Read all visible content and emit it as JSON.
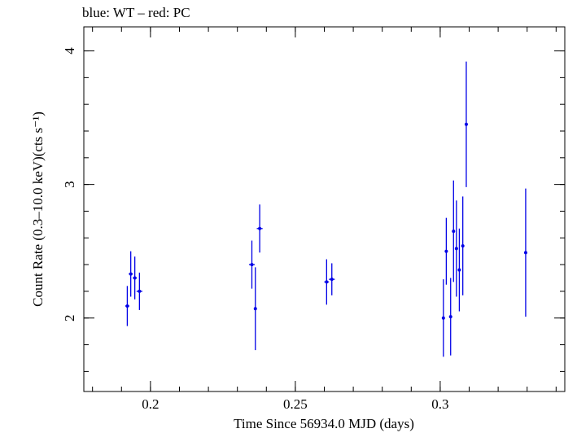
{
  "chart_data": {
    "type": "scatter",
    "title": "blue: WT – red: PC",
    "xlabel": "Time Since 56934.0 MJD (days)",
    "ylabel": "Count Rate (0.3–10.0 keV)(cts s⁻¹)",
    "xlim": [
      0.177,
      0.343
    ],
    "ylim": [
      1.45,
      4.18
    ],
    "x_ticks": [
      {
        "value": 0.2,
        "label": "0.2"
      },
      {
        "value": 0.25,
        "label": "0.25"
      },
      {
        "value": 0.3,
        "label": "0.3"
      }
    ],
    "y_ticks": [
      {
        "value": 2,
        "label": "2"
      },
      {
        "value": 3,
        "label": "3"
      },
      {
        "value": 4,
        "label": "4"
      }
    ],
    "x_minor_step": 0.01,
    "y_minor_step": 0.2,
    "grid": false,
    "series": [
      {
        "name": "WT",
        "color": "#0000e6",
        "points": [
          {
            "x": 0.192,
            "y": 2.09,
            "err": 0.15,
            "xerr": 0.0007
          },
          {
            "x": 0.1932,
            "y": 2.33,
            "err": 0.17,
            "xerr": 0.0007
          },
          {
            "x": 0.1946,
            "y": 2.3,
            "err": 0.16,
            "xerr": 0.0007
          },
          {
            "x": 0.1962,
            "y": 2.2,
            "err": 0.14,
            "xerr": 0.001
          },
          {
            "x": 0.235,
            "y": 2.4,
            "err": 0.18,
            "xerr": 0.001
          },
          {
            "x": 0.2362,
            "y": 2.07,
            "err": 0.31,
            "xerr": 0.0003
          },
          {
            "x": 0.2377,
            "y": 2.67,
            "err": 0.18,
            "xerr": 0.001
          },
          {
            "x": 0.2608,
            "y": 2.27,
            "err": 0.17,
            "xerr": 0.0008
          },
          {
            "x": 0.2626,
            "y": 2.29,
            "err": 0.12,
            "xerr": 0.001
          },
          {
            "x": 0.3011,
            "y": 2.0,
            "err": 0.29,
            "xerr": 0.0003
          },
          {
            "x": 0.3021,
            "y": 2.5,
            "err": 0.25,
            "xerr": 0.0005
          },
          {
            "x": 0.3036,
            "y": 2.01,
            "err": 0.29,
            "xerr": 0.0005
          },
          {
            "x": 0.3046,
            "y": 2.65,
            "err": 0.38,
            "xerr": 0.0003
          },
          {
            "x": 0.3056,
            "y": 2.52,
            "err": 0.36,
            "xerr": 0.0005
          },
          {
            "x": 0.3066,
            "y": 2.36,
            "err": 0.31,
            "xerr": 0.0003
          },
          {
            "x": 0.3078,
            "y": 2.54,
            "err": 0.37,
            "xerr": 0.0005
          },
          {
            "x": 0.309,
            "y": 3.45,
            "err": 0.47,
            "xerr": 0.0003
          },
          {
            "x": 0.3295,
            "y": 2.49,
            "err": 0.48,
            "xerr": 0.0003
          }
        ]
      }
    ]
  }
}
